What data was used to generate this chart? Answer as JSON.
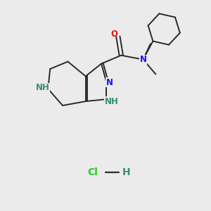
{
  "background_color": "#ebebeb",
  "bond_color": "#2a2a2a",
  "bond_width": 1.4,
  "N_color": "#1414ff",
  "NH_color": "#3a8a7a",
  "O_color": "#ee1111",
  "Cl_color": "#22cc22",
  "H_color": "#3a8a7a",
  "font_size": 8.5,
  "HCl_font_size": 10,
  "xlim": [
    0,
    10
  ],
  "ylim": [
    0,
    10
  ]
}
